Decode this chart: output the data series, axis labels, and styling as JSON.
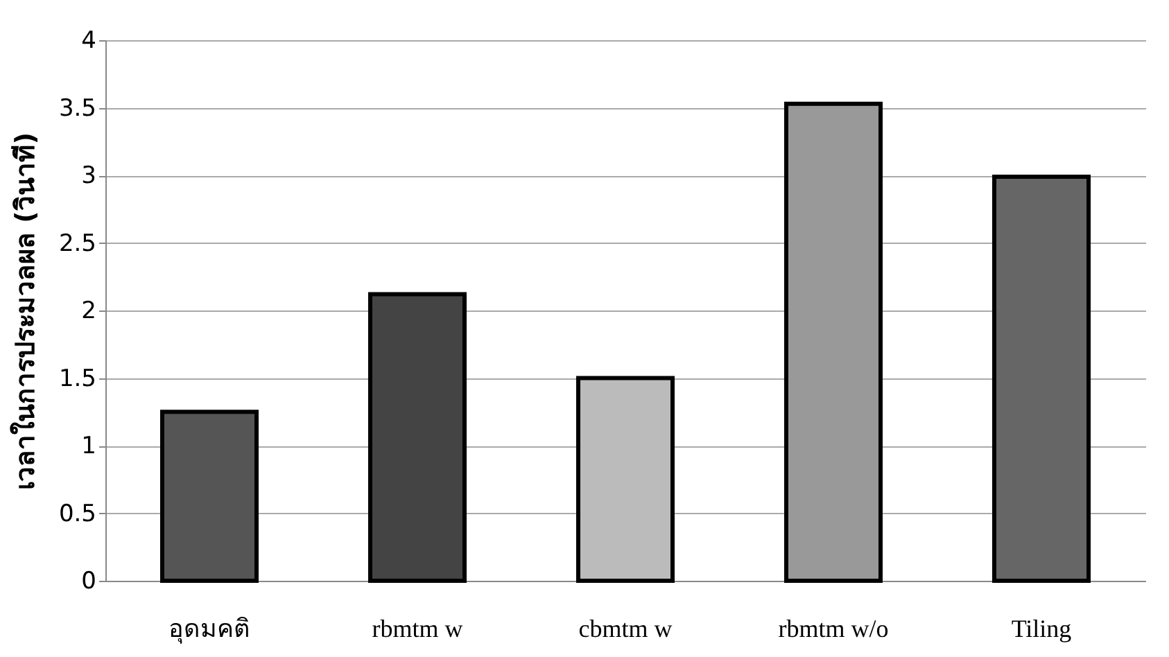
{
  "chart_data": {
    "type": "bar",
    "ylabel": "เวลาในการประมวลผล (วินาที)",
    "categories": [
      "อุดมคติ",
      "rbmtm  w",
      "cbmtm  w",
      "rbmtm  w/o",
      "Tiling"
    ],
    "values": [
      1.25,
      2.12,
      1.5,
      3.53,
      2.99
    ],
    "colors": [
      "#555555",
      "#444444",
      "#bbbbbb",
      "#999999",
      "#666666"
    ],
    "ylim": [
      0,
      4
    ],
    "yticks": [
      0,
      0.5,
      1,
      1.5,
      2,
      2.5,
      3,
      3.5,
      4
    ],
    "grid": "y"
  }
}
